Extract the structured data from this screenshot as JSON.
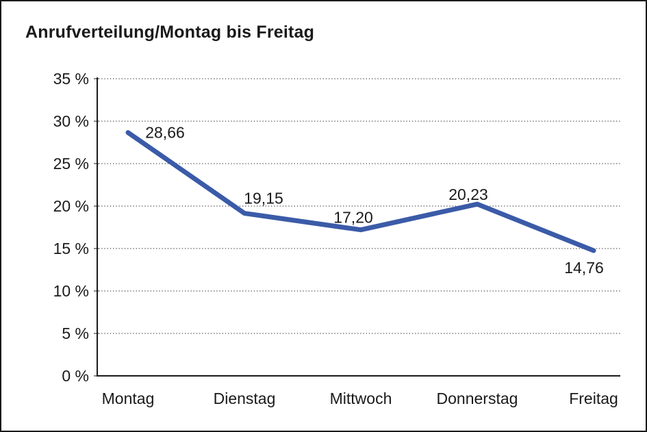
{
  "window": {
    "background_color": "#ffffff",
    "border_color": "#1a1a1a"
  },
  "chart_data": {
    "type": "line",
    "title": "Anrufverteilung/Montag bis Freitag",
    "categories": [
      "Montag",
      "Dienstag",
      "Mittwoch",
      "Donnerstag",
      "Freitag"
    ],
    "series": [
      {
        "name": "Anrufverteilung",
        "values": [
          28.66,
          19.15,
          17.2,
          20.23,
          14.76
        ]
      }
    ],
    "value_labels": [
      "28,66",
      "19,15",
      "17,20",
      "20,23",
      "14,76"
    ],
    "xlabel": "",
    "ylabel": "",
    "yaxis": {
      "min": 0,
      "max": 35,
      "step": 5,
      "unit": "%",
      "tick_labels": [
        "0 %",
        "5 %",
        "10 %",
        "15 %",
        "20 %",
        "25 %",
        "30 %",
        "35 %"
      ],
      "tick_values": [
        0,
        5,
        10,
        15,
        20,
        25,
        30,
        35
      ]
    },
    "grid": {
      "horizontal": true,
      "vertical": false,
      "style": "dotted"
    },
    "legend": "none",
    "colors": {
      "line": "#3B5BA8",
      "text": "#1a1a1a",
      "gridline": "#555555",
      "axis": "#1a1a1a"
    }
  }
}
